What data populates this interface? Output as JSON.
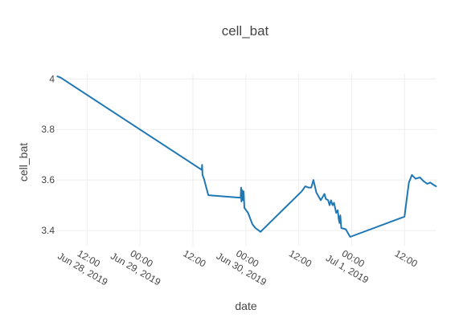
{
  "chart_data": {
    "type": "line",
    "title": "cell_bat",
    "xlabel": "date",
    "ylabel": "cell_bat",
    "xlim": [
      "2019-06-28T05:00",
      "2019-07-01T19:15"
    ],
    "ylim": [
      3.34,
      4.02
    ],
    "grid": true,
    "legend": "none",
    "color": "#1f77b4",
    "x_ticks": [
      {
        "value": "2019-06-28T12:00",
        "lines": [
          "12:00",
          "Jun 28, 2019"
        ]
      },
      {
        "value": "2019-06-29T00:00",
        "lines": [
          "00:00",
          "Jun 29, 2019"
        ]
      },
      {
        "value": "2019-06-29T12:00",
        "lines": [
          "12:00",
          ""
        ]
      },
      {
        "value": "2019-06-30T00:00",
        "lines": [
          "00:00",
          "Jun 30, 2019"
        ]
      },
      {
        "value": "2019-06-30T12:00",
        "lines": [
          "12:00",
          ""
        ]
      },
      {
        "value": "2019-07-01T00:00",
        "lines": [
          "00:00",
          "Jul 1, 2019"
        ]
      },
      {
        "value": "2019-07-01T12:00",
        "lines": [
          "12:00",
          ""
        ]
      }
    ],
    "y_ticks": [
      {
        "value": 3.4,
        "label": "3.4"
      },
      {
        "value": 3.6,
        "label": "3.6"
      },
      {
        "value": 3.8,
        "label": "3.8"
      },
      {
        "value": 4.0,
        "label": "4"
      }
    ],
    "series": [
      {
        "x": [
          "2019-06-28T05:15",
          "2019-06-28T06:00",
          "2019-06-29T14:00",
          "2019-06-29T14:05",
          "2019-06-29T14:10",
          "2019-06-29T14:30",
          "2019-06-29T15:30",
          "2019-06-29T22:50",
          "2019-06-29T22:55",
          "2019-06-29T23:00",
          "2019-06-29T23:10",
          "2019-06-29T23:20",
          "2019-06-29T23:30",
          "2019-06-29T23:40",
          "2019-06-30T00:30",
          "2019-06-30T01:30",
          "2019-06-30T02:10",
          "2019-06-30T03:20",
          "2019-06-30T12:40",
          "2019-06-30T13:30",
          "2019-06-30T14:10",
          "2019-06-30T14:50",
          "2019-06-30T15:20",
          "2019-06-30T16:00",
          "2019-06-30T17:00",
          "2019-06-30T17:50",
          "2019-06-30T18:10",
          "2019-06-30T18:40",
          "2019-06-30T19:00",
          "2019-06-30T19:20",
          "2019-06-30T19:40",
          "2019-06-30T20:00",
          "2019-06-30T20:30",
          "2019-06-30T20:50",
          "2019-06-30T21:05",
          "2019-06-30T21:15",
          "2019-06-30T21:25",
          "2019-06-30T21:40",
          "2019-06-30T22:40",
          "2019-06-30T23:40",
          "2019-07-01T12:00",
          "2019-07-01T12:30",
          "2019-07-01T13:00",
          "2019-07-01T13:40",
          "2019-07-01T14:30",
          "2019-07-01T15:30",
          "2019-07-01T16:20",
          "2019-07-01T17:10",
          "2019-07-01T17:50",
          "2019-07-01T18:40",
          "2019-07-01T19:10"
        ],
        "y": [
          4.01,
          4.005,
          3.64,
          3.66,
          3.62,
          3.605,
          3.54,
          3.53,
          3.57,
          3.515,
          3.56,
          3.52,
          3.555,
          3.49,
          3.47,
          3.425,
          3.41,
          3.395,
          3.555,
          3.575,
          3.57,
          3.57,
          3.6,
          3.55,
          3.52,
          3.545,
          3.525,
          3.52,
          3.5,
          3.52,
          3.5,
          3.51,
          3.47,
          3.48,
          3.445,
          3.43,
          3.46,
          3.41,
          3.405,
          3.375,
          3.455,
          3.525,
          3.59,
          3.62,
          3.605,
          3.61,
          3.595,
          3.585,
          3.59,
          3.58,
          3.575
        ]
      }
    ]
  }
}
